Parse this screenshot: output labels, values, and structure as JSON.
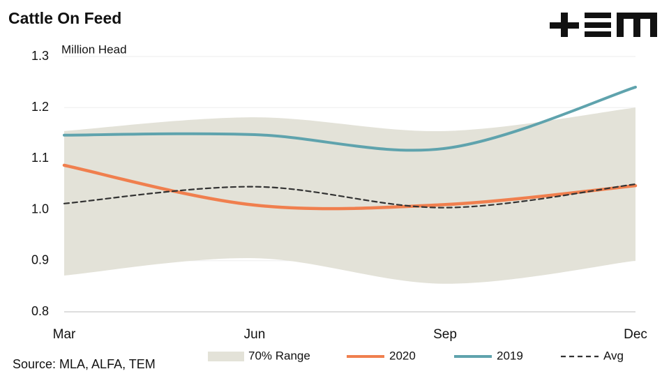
{
  "chart_data": {
    "type": "line",
    "title": "Cattle On Feed",
    "y_label": "Million Head",
    "source": "Source: MLA, ALFA, TEM",
    "categories": [
      "Mar",
      "Jun",
      "Sep",
      "Dec"
    ],
    "range": {
      "name": "70% Range",
      "color": "#e3e2d8",
      "low": [
        0.871,
        0.905,
        0.855,
        0.9
      ],
      "high": [
        1.154,
        1.181,
        1.154,
        1.2
      ]
    },
    "series": [
      {
        "name": "2020",
        "color": "#f07f4e",
        "dash": false,
        "width": 4.5,
        "values": [
          1.087,
          1.009,
          1.01,
          1.047
        ]
      },
      {
        "name": "2019",
        "color": "#5fa3ad",
        "dash": false,
        "width": 4,
        "values": [
          1.146,
          1.147,
          1.12,
          1.24
        ]
      },
      {
        "name": "Avg",
        "color": "#333333",
        "dash": true,
        "width": 2.2,
        "values": [
          1.012,
          1.045,
          1.004,
          1.05
        ]
      }
    ],
    "ylim": [
      0.8,
      1.3
    ],
    "yticks": [
      0.8,
      0.9,
      {
        "value": 1,
        "label": "1.0"
      },
      1.1,
      1.2,
      1.3
    ],
    "grid": true
  }
}
